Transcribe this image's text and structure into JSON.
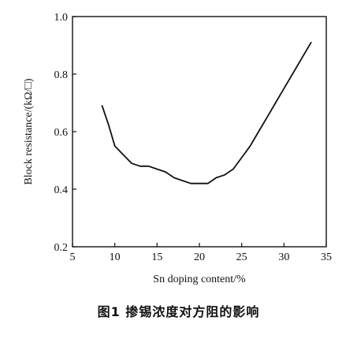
{
  "caption": "图1  掺锡浓度对方阻的影响",
  "chart_data": {
    "type": "line",
    "title": "",
    "xlabel": "Sn doping content/%",
    "ylabel": "Block resistance/(kΩ/□)",
    "xlim": [
      5,
      35
    ],
    "ylim": [
      0.2,
      1.0
    ],
    "xticks": [
      5,
      10,
      15,
      20,
      25,
      30,
      35
    ],
    "yticks": [
      0.2,
      0.4,
      0.6,
      0.8,
      1.0
    ],
    "xtick_labels": [
      "5",
      "10",
      "15",
      "20",
      "25",
      "30",
      "35"
    ],
    "ytick_labels": [
      "0.2",
      "0.4",
      "0.6",
      "0.8",
      "1.0"
    ],
    "grid": false,
    "line_color": "#111111",
    "series": [
      {
        "x": [
          8.5,
          9.3,
          10.0,
          11.0,
          12.0,
          13.0,
          14.0,
          15.0,
          16.0,
          17.0,
          18.0,
          19.0,
          20.0,
          21.0,
          22.0,
          23.0,
          24.0,
          25.0,
          26.0,
          27.0,
          28.0,
          29.0,
          30.0,
          31.0,
          32.0,
          33.2
        ],
        "y": [
          0.69,
          0.62,
          0.55,
          0.52,
          0.49,
          0.48,
          0.48,
          0.47,
          0.46,
          0.44,
          0.43,
          0.42,
          0.42,
          0.42,
          0.44,
          0.45,
          0.47,
          0.51,
          0.55,
          0.6,
          0.65,
          0.7,
          0.75,
          0.8,
          0.85,
          0.91
        ]
      }
    ]
  }
}
